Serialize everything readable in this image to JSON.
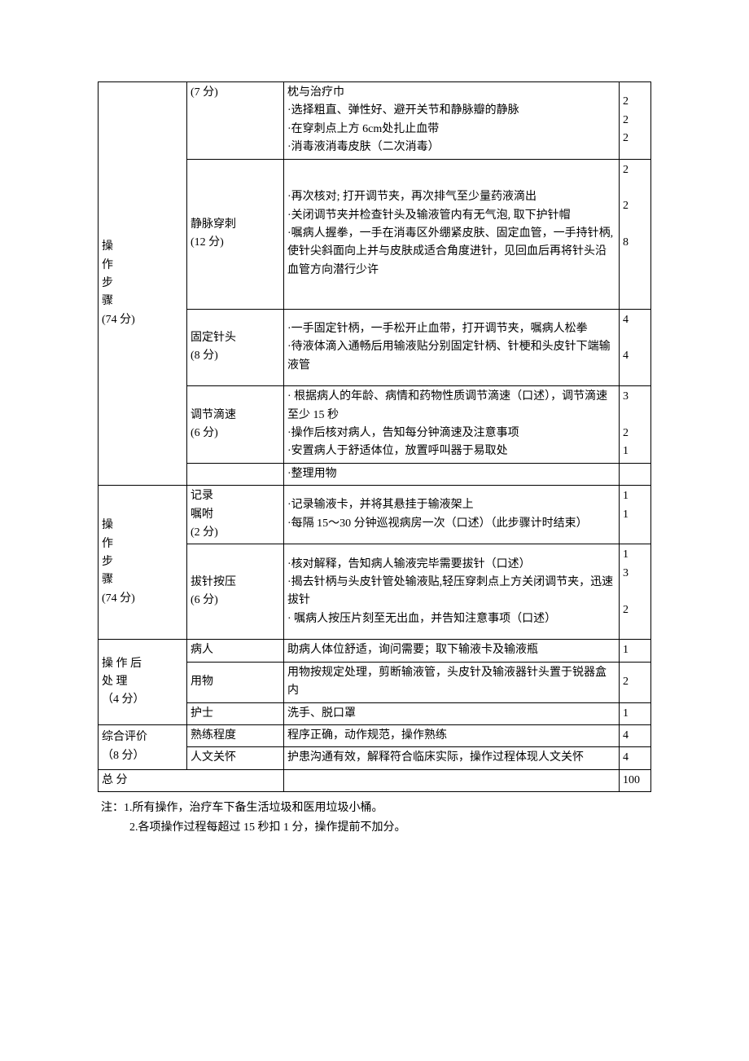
{
  "table": {
    "sections": [
      {
        "label_chars": [
          "操",
          "",
          "作",
          "",
          "步",
          "",
          "骤",
          "(74 分)"
        ],
        "subsections": [
          {
            "label": "(7 分)",
            "rows": [
              {
                "desc": "枕与治疗巾",
                "score": ""
              },
              {
                "desc": "·选择粗直、弹性好、避开关节和静脉瓣的静脉",
                "score": "2"
              },
              {
                "desc": "·在穿刺点上方 6cm处扎止血带",
                "score": "2"
              },
              {
                "desc": "·消毒液消毒皮肤（二次消毒）",
                "score": "2"
              }
            ]
          },
          {
            "label": "静脉穿刺\n(12 分)",
            "rows": [
              {
                "desc": "·再次核对; 打开调节夹，再次排气至少量药液滴出",
                "score": "2"
              },
              {
                "desc": "·关闭调节夹并检查针头及输液管内有无气泡, 取下护针帽",
                "score": "2"
              },
              {
                "desc": "·嘱病人握拳，一手在消毒区外绷紧皮肤、固定血管，一手持针柄, 使针尖斜面向上并与皮肤成适合角度进针，见回血后再将针头沿血管方向潜行少许",
                "score": "8"
              }
            ]
          },
          {
            "label": "固定针头\n(8 分)",
            "rows": [
              {
                "desc": "·一手固定针柄，一手松开止血带，打开调节夹，嘱病人松拳",
                "score": "4"
              },
              {
                "desc": "·待液体滴入通畅后用输液贴分别固定针柄、针梗和头皮针下端输液管",
                "score": "4"
              }
            ]
          },
          {
            "label": "调节滴速\n(6 分)",
            "rows": [
              {
                "desc": "· 根据病人的年龄、病情和药物性质调节滴速（口述），调节滴速至少 15 秒",
                "score": "3"
              },
              {
                "desc": "·操作后核对病人，告知每分钟滴速及注意事项",
                "score": "2"
              },
              {
                "desc": "·安置病人于舒适体位，放置呼叫器于易取处",
                "score": "1"
              }
            ]
          },
          {
            "label": "",
            "rows": [
              {
                "desc": "·整理用物",
                "score": ""
              }
            ]
          }
        ]
      },
      {
        "label_chars": [
          "操",
          "作",
          "步",
          "骤",
          "(74 分)"
        ],
        "subsections": [
          {
            "label": "记录\n嘱咐\n(2 分)",
            "rows": [
              {
                "desc": "·记录输液卡，并将其悬挂于输液架上",
                "score": "1"
              },
              {
                "desc": "·每隔 15～30 分钟巡视病房一次（口述）（此步骤计时结束）",
                "score": "1"
              }
            ]
          },
          {
            "label": "拔针按压\n(6 分)",
            "rows": [
              {
                "desc": "·核对解释，告知病人输液完毕需要拔针（口述）",
                "score": "1"
              },
              {
                "desc": "·揭去针柄与头皮针管处输液贴,轻压穿刺点上方关闭调节夹，迅速拔针",
                "score": "3"
              },
              {
                "desc": "· 嘱病人按压片刻至无出血，并告知注意事项（口述）",
                "score": "2"
              }
            ]
          }
        ]
      },
      {
        "label_plain": "操  作  后\n处  理\n（4 分）",
        "subsections": [
          {
            "label": "病人",
            "rows": [
              {
                "desc": "助病人体位舒适，询问需要；取下输液卡及输液瓶",
                "score": "1"
              }
            ]
          },
          {
            "label": "用物",
            "rows": [
              {
                "desc": "用物按规定处理，剪断输液管，头皮针及输液器针头置于锐器盒内",
                "score": "2"
              }
            ]
          },
          {
            "label": "护士",
            "rows": [
              {
                "desc": "洗手、脱口罩",
                "score": "1"
              }
            ]
          }
        ]
      },
      {
        "label_plain": "综合评价\n（8 分）",
        "subsections": [
          {
            "label": "熟练程度",
            "rows": [
              {
                "desc": "程序正确，动作规范，操作熟练",
                "score": "4"
              }
            ]
          },
          {
            "label": "人文关怀",
            "rows": [
              {
                "desc": "护患沟通有效，解释符合临床实际，操作过程体现人文关怀",
                "score": "4"
              }
            ]
          }
        ]
      }
    ],
    "total_label": "总  分",
    "total_score": "100"
  },
  "notes": {
    "line1": "注：1.所有操作，治疗车下备生活垃圾和医用垃圾小桶。",
    "line2": "2.各项操作过程每超过 15 秒扣 1 分，操作提前不加分。"
  }
}
